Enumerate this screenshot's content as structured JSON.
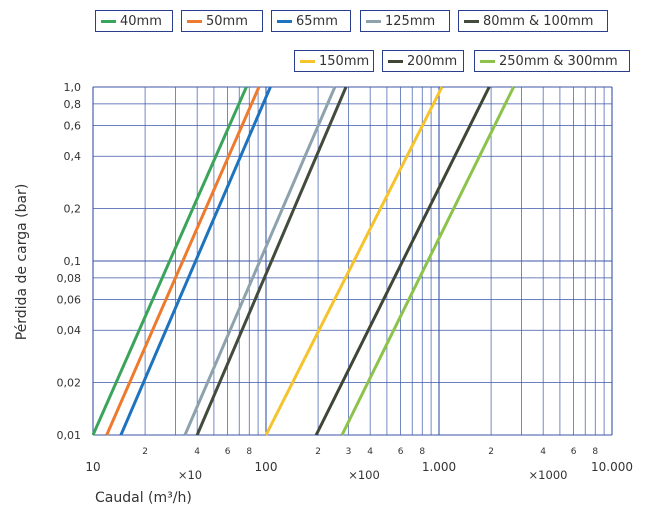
{
  "chart_data": {
    "type": "line",
    "scale": "log-log",
    "xlabel": "Caudal (m³/h)",
    "ylabel": "Pérdida de carga (bar)",
    "xlim": [
      10,
      10000
    ],
    "ylim": [
      0.01,
      1.0
    ],
    "grid": true,
    "legend_position": "top",
    "x_major_tick_labels": [
      "10",
      "100",
      "1.000",
      "10.000"
    ],
    "x_minor_tick_labels": [
      "2",
      "4",
      "6",
      "8",
      "2",
      "3",
      "4",
      "6",
      "8",
      "2",
      "4",
      "6",
      "8"
    ],
    "x_multiplier_labels": [
      "×10",
      "×100",
      "×1000"
    ],
    "y_tick_labels": [
      "1,0",
      "0,8",
      "0,6",
      "0,4",
      "0,2",
      "0,1",
      "0,08",
      "0,06",
      "0,04",
      "0,02",
      "0,01"
    ],
    "series": [
      {
        "name": "40mm",
        "color": "#3aa55a",
        "points": [
          [
            10,
            0.01
          ],
          [
            77,
            1.0
          ]
        ]
      },
      {
        "name": "50mm",
        "color": "#ee7a2e",
        "points": [
          [
            12,
            0.01
          ],
          [
            91,
            1.0
          ]
        ]
      },
      {
        "name": "65mm",
        "color": "#1e73be",
        "points": [
          [
            14.5,
            0.01
          ],
          [
            106,
            1.0
          ]
        ]
      },
      {
        "name": "125mm",
        "color": "#8ea2ad",
        "points": [
          [
            34,
            0.01
          ],
          [
            250,
            1.0
          ]
        ]
      },
      {
        "name": "80mm & 100mm",
        "color": "#424b3c",
        "points": [
          [
            40,
            0.01
          ],
          [
            290,
            1.0
          ]
        ]
      },
      {
        "name": "150mm",
        "color": "#f5c32c",
        "points": [
          [
            100,
            0.01
          ],
          [
            1040,
            1.0
          ]
        ]
      },
      {
        "name": "200mm",
        "color": "#3f4636",
        "points": [
          [
            195,
            0.01
          ],
          [
            1950,
            1.0
          ]
        ]
      },
      {
        "name": "250mm & 300mm",
        "color": "#8dc34a",
        "points": [
          [
            275,
            0.01
          ],
          [
            2700,
            1.0
          ]
        ]
      }
    ]
  }
}
